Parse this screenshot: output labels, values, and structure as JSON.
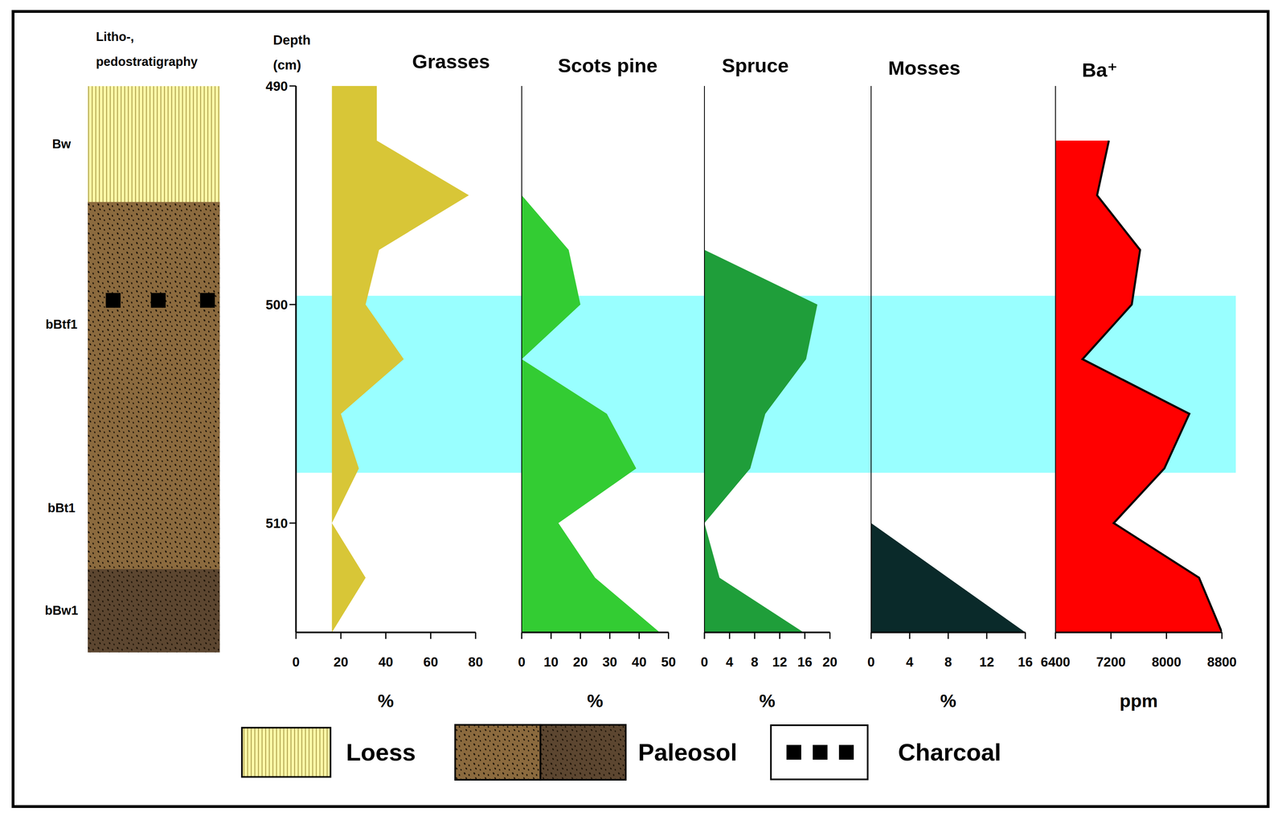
{
  "stratigraphy": {
    "title": "Litho-, pedostratigraphy",
    "layers": [
      {
        "label": "Bw",
        "material": "Loess",
        "color": "#fdf7a6",
        "top": 490,
        "bottom": 495.3
      },
      {
        "label": "bBtf1",
        "material": "Paleosol",
        "color": "#8b6a3e",
        "top": 495.3,
        "bottom": 506.5
      },
      {
        "label": "bBt1",
        "material": "Paleosol",
        "color": "#8b6a3e",
        "top": 506.5,
        "bottom": 512.1
      },
      {
        "label": "bBw1",
        "material": "Paleosol",
        "color": "#5c4630",
        "top": 512.1,
        "bottom": 515.9
      }
    ],
    "charcoal_depth": 499.8
  },
  "key": [
    "Loess",
    "Paleosol",
    "Charcoal"
  ],
  "depth_axis": {
    "label": "Depth (cm)",
    "ylim": [
      490,
      515
    ],
    "yticks": [
      490,
      500,
      510
    ],
    "values": [
      490,
      492.5,
      495,
      497.5,
      500,
      502.5,
      505,
      507.5,
      510,
      512.5,
      515
    ]
  },
  "highlight": {
    "ylim": [
      499.6,
      507.7
    ],
    "color": "#99ffff"
  },
  "chart_data": [
    {
      "type": "area",
      "title": "Grasses",
      "xlabel": "%",
      "xlim": [
        0,
        80
      ],
      "xticks": [
        0,
        20,
        40,
        60,
        80
      ],
      "color": "#d8c637",
      "line_style": "none",
      "baseline": 16,
      "values": [
        36,
        36,
        77,
        37,
        31,
        48,
        20,
        28,
        16,
        31,
        16
      ]
    },
    {
      "type": "area",
      "title": "Scots pine",
      "xlabel": "%",
      "xlim": [
        0,
        50
      ],
      "xticks": [
        0,
        10,
        20,
        30,
        40,
        50
      ],
      "color": "#33cc33",
      "line_style": "none",
      "tick_labels": "x",
      "values": [
        null,
        null,
        0,
        16,
        20,
        0,
        29,
        39,
        12.5,
        25,
        47
      ]
    },
    {
      "type": "area",
      "title": "Spruce",
      "xlabel": "%",
      "xlim": [
        0,
        20
      ],
      "xticks": [
        0,
        4,
        8,
        12,
        16,
        20
      ],
      "color": "#1f9e3a",
      "line_style": "none",
      "tick_labels": "x",
      "values": [
        null,
        null,
        null,
        0,
        18,
        16.2,
        9.7,
        7.3,
        0,
        2.4,
        15.8
      ]
    },
    {
      "type": "area",
      "title": "Mosses",
      "xlabel": "%",
      "xlim": [
        0,
        16
      ],
      "xticks": [
        0,
        4,
        8,
        12,
        16
      ],
      "color": "#0a2a2a",
      "line_style": "none",
      "tick_labels": "x",
      "values": [
        null,
        null,
        null,
        null,
        null,
        null,
        null,
        null,
        0,
        8,
        16
      ]
    },
    {
      "type": "area",
      "title": "Ba⁺",
      "xlabel": "ppm",
      "xlim": [
        6400,
        8800
      ],
      "xticks": [
        6400,
        7200,
        8000,
        8800
      ],
      "color": "#ff0000",
      "line_style": "solid",
      "tick_labels": "x",
      "values": [
        null,
        7170,
        7000,
        7620,
        7500,
        6790,
        8330,
        7970,
        7240,
        8470,
        8800
      ]
    }
  ]
}
